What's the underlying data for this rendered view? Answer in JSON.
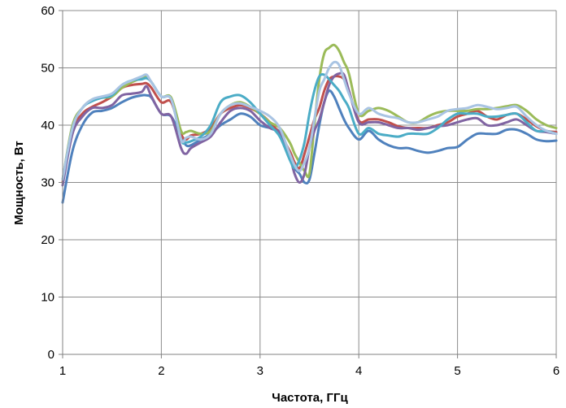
{
  "chart_data": {
    "type": "line",
    "title": "",
    "xlabel": "Частота, ГГц",
    "ylabel": "Мощность, Вт",
    "xlim": [
      1,
      6
    ],
    "ylim": [
      0,
      60
    ],
    "xticks": [
      1,
      2,
      3,
      4,
      5,
      6
    ],
    "yticks": [
      0,
      10,
      20,
      30,
      40,
      50,
      60
    ],
    "grid": true,
    "legend": "none",
    "x": [
      1.0,
      1.1,
      1.2,
      1.3,
      1.4,
      1.5,
      1.6,
      1.7,
      1.8,
      1.85,
      1.9,
      2.0,
      2.1,
      2.2,
      2.25,
      2.3,
      2.4,
      2.5,
      2.6,
      2.7,
      2.8,
      2.9,
      3.0,
      3.1,
      3.2,
      3.3,
      3.35,
      3.4,
      3.45,
      3.5,
      3.55,
      3.6,
      3.65,
      3.7,
      3.75,
      3.8,
      3.85,
      3.9,
      4.0,
      4.1,
      4.2,
      4.3,
      4.4,
      4.5,
      4.6,
      4.7,
      4.8,
      4.9,
      5.0,
      5.1,
      5.2,
      5.3,
      5.4,
      5.5,
      5.6,
      5.7,
      5.8,
      5.9,
      6.0
    ],
    "series": [
      {
        "color": "#4f81bd",
        "values": [
          26.5,
          35.5,
          40.0,
          42.2,
          42.5,
          43.0,
          44.0,
          44.8,
          45.2,
          45.2,
          44.8,
          42.0,
          41.5,
          38.0,
          36.5,
          36.5,
          37.5,
          38.5,
          40.0,
          41.0,
          42.0,
          41.5,
          40.0,
          39.5,
          38.8,
          35.0,
          32.5,
          31.5,
          30.0,
          30.5,
          35.0,
          40.0,
          44.0,
          46.0,
          45.0,
          43.0,
          41.0,
          39.5,
          37.5,
          39.0,
          37.5,
          36.5,
          36.0,
          36.0,
          35.5,
          35.2,
          35.5,
          36.0,
          36.2,
          37.5,
          38.5,
          38.5,
          38.5,
          39.2,
          39.2,
          38.5,
          37.5,
          37.2,
          37.3
        ]
      },
      {
        "color": "#c0504d",
        "values": [
          30.0,
          39.0,
          42.0,
          43.2,
          44.0,
          45.0,
          46.5,
          47.0,
          47.2,
          47.3,
          46.5,
          44.0,
          44.0,
          38.5,
          37.5,
          38.2,
          38.5,
          39.5,
          42.0,
          43.0,
          43.5,
          43.0,
          42.0,
          40.5,
          38.5,
          35.5,
          33.5,
          32.5,
          35.0,
          38.0,
          41.0,
          43.0,
          46.0,
          48.0,
          48.5,
          48.5,
          48.0,
          46.0,
          40.8,
          41.0,
          41.0,
          40.5,
          39.8,
          39.5,
          39.5,
          39.5,
          40.0,
          40.5,
          41.5,
          42.0,
          42.5,
          41.5,
          41.0,
          41.8,
          42.0,
          41.0,
          39.8,
          39.0,
          38.8
        ]
      },
      {
        "color": "#9bbb59",
        "values": [
          30.5,
          40.0,
          43.0,
          44.5,
          44.8,
          45.0,
          46.5,
          47.5,
          48.2,
          48.5,
          47.5,
          45.0,
          44.8,
          39.0,
          38.8,
          39.0,
          38.5,
          39.0,
          42.0,
          43.5,
          44.0,
          43.2,
          42.0,
          40.5,
          39.5,
          37.0,
          35.0,
          33.5,
          32.0,
          31.5,
          40.0,
          48.0,
          52.5,
          53.5,
          54.0,
          53.0,
          51.0,
          49.0,
          42.0,
          42.5,
          43.0,
          42.5,
          41.5,
          40.5,
          40.5,
          41.5,
          42.2,
          42.5,
          42.5,
          42.5,
          42.8,
          42.8,
          43.0,
          43.3,
          43.5,
          42.5,
          41.0,
          40.0,
          39.5
        ]
      },
      {
        "color": "#8064a2",
        "values": [
          29.5,
          38.5,
          41.5,
          43.0,
          43.0,
          43.5,
          45.2,
          45.5,
          45.8,
          46.8,
          45.0,
          42.0,
          41.5,
          36.0,
          35.0,
          36.0,
          37.0,
          38.0,
          40.5,
          42.5,
          43.0,
          42.5,
          40.8,
          39.5,
          38.5,
          34.5,
          31.5,
          30.0,
          31.5,
          36.0,
          39.0,
          41.0,
          44.0,
          47.0,
          48.5,
          49.0,
          48.8,
          46.0,
          40.5,
          40.5,
          40.5,
          40.0,
          39.5,
          39.5,
          39.2,
          39.5,
          39.8,
          40.0,
          40.5,
          41.0,
          41.2,
          40.0,
          40.0,
          40.5,
          41.0,
          40.0,
          39.0,
          38.8,
          38.5
        ]
      },
      {
        "color": "#4bacc6",
        "values": [
          30.5,
          39.5,
          43.0,
          44.2,
          44.8,
          45.2,
          47.0,
          47.8,
          48.0,
          48.2,
          47.5,
          45.0,
          44.5,
          37.5,
          37.0,
          37.2,
          38.0,
          40.0,
          44.0,
          45.0,
          45.2,
          44.0,
          42.0,
          40.0,
          38.0,
          34.0,
          32.5,
          34.0,
          37.0,
          42.0,
          46.0,
          48.5,
          48.8,
          48.0,
          47.0,
          46.0,
          44.5,
          43.0,
          38.5,
          39.5,
          38.5,
          38.2,
          38.0,
          38.5,
          38.5,
          38.5,
          39.5,
          41.0,
          42.0,
          42.0,
          42.0,
          41.5,
          41.5,
          41.8,
          42.0,
          40.5,
          39.0,
          39.0,
          38.5
        ]
      },
      {
        "color": "#a9c4e3",
        "values": [
          30.5,
          39.5,
          43.0,
          44.5,
          45.0,
          45.5,
          47.0,
          47.8,
          48.5,
          48.8,
          47.5,
          45.0,
          44.5,
          37.5,
          37.8,
          38.0,
          37.5,
          38.5,
          42.0,
          43.5,
          43.8,
          43.2,
          42.5,
          41.5,
          39.5,
          35.0,
          33.0,
          32.0,
          33.5,
          36.0,
          41.0,
          46.0,
          48.0,
          50.0,
          51.0,
          50.5,
          48.0,
          45.5,
          42.0,
          43.0,
          42.0,
          41.5,
          41.2,
          40.5,
          40.5,
          41.0,
          41.5,
          42.5,
          42.8,
          43.0,
          43.5,
          43.2,
          42.8,
          43.0,
          43.2,
          41.5,
          40.0,
          39.0,
          38.5
        ]
      }
    ]
  }
}
